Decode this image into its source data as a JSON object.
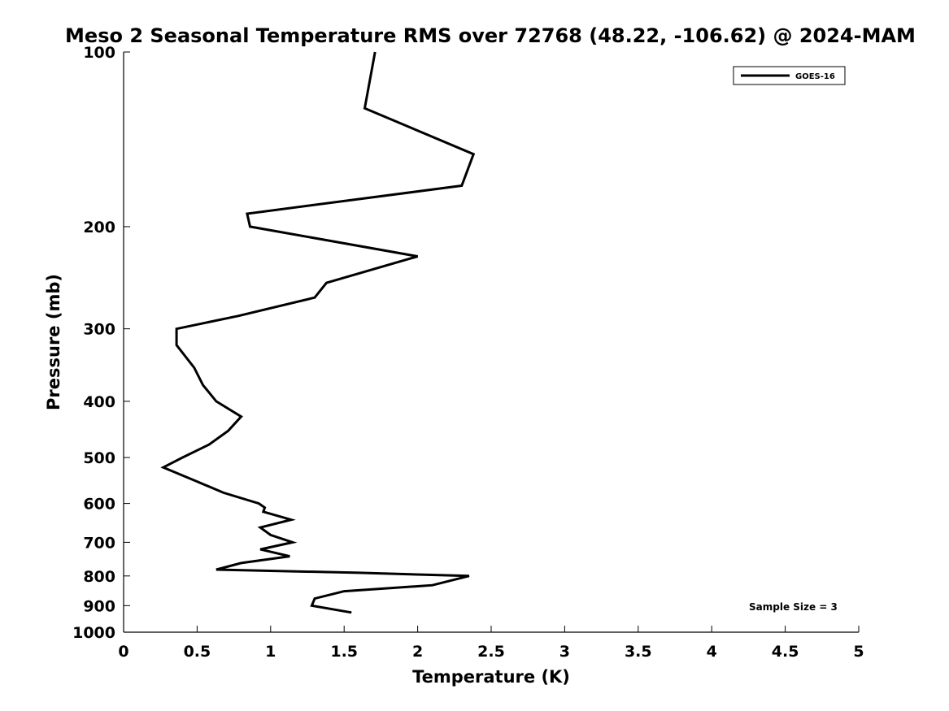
{
  "chart_data": {
    "type": "line",
    "title": "Meso 2 Seasonal Temperature RMS over 72768 (48.22, -106.62) @ 2024-MAM",
    "xlabel": "Temperature (K)",
    "ylabel": "Pressure (mb)",
    "xlim": [
      0,
      5
    ],
    "ylim": [
      100,
      1000
    ],
    "y_scale": "log",
    "y_reversed": true,
    "x_ticks": [
      "0",
      "0.5",
      "1",
      "1.5",
      "2",
      "2.5",
      "3",
      "3.5",
      "4",
      "4.5",
      "5"
    ],
    "y_ticks": [
      "100",
      "200",
      "300",
      "400",
      "500",
      "600",
      "700",
      "800",
      "900",
      "1000"
    ],
    "grid": false,
    "legend": {
      "position": "top-right",
      "entries": [
        "GOES-16"
      ]
    },
    "annotation": "Sample Size = 3",
    "series": [
      {
        "name": "GOES-16",
        "color": "#000000",
        "points": [
          {
            "x": 1.71,
            "y": 100
          },
          {
            "x": 1.64,
            "y": 125
          },
          {
            "x": 2.38,
            "y": 150
          },
          {
            "x": 2.3,
            "y": 170
          },
          {
            "x": 0.84,
            "y": 190
          },
          {
            "x": 0.86,
            "y": 200
          },
          {
            "x": 2.0,
            "y": 225
          },
          {
            "x": 1.38,
            "y": 250
          },
          {
            "x": 1.3,
            "y": 265
          },
          {
            "x": 0.78,
            "y": 285
          },
          {
            "x": 0.36,
            "y": 300
          },
          {
            "x": 0.36,
            "y": 320
          },
          {
            "x": 0.48,
            "y": 350
          },
          {
            "x": 0.54,
            "y": 375
          },
          {
            "x": 0.63,
            "y": 400
          },
          {
            "x": 0.8,
            "y": 425
          },
          {
            "x": 0.71,
            "y": 450
          },
          {
            "x": 0.58,
            "y": 475
          },
          {
            "x": 0.4,
            "y": 500
          },
          {
            "x": 0.27,
            "y": 520
          },
          {
            "x": 0.5,
            "y": 550
          },
          {
            "x": 0.68,
            "y": 575
          },
          {
            "x": 0.92,
            "y": 600
          },
          {
            "x": 0.96,
            "y": 610
          },
          {
            "x": 0.95,
            "y": 620
          },
          {
            "x": 1.14,
            "y": 640
          },
          {
            "x": 0.93,
            "y": 660
          },
          {
            "x": 1.0,
            "y": 680
          },
          {
            "x": 1.15,
            "y": 700
          },
          {
            "x": 0.93,
            "y": 720
          },
          {
            "x": 1.13,
            "y": 740
          },
          {
            "x": 0.8,
            "y": 760
          },
          {
            "x": 0.63,
            "y": 780
          },
          {
            "x": 1.6,
            "y": 790
          },
          {
            "x": 2.35,
            "y": 800
          },
          {
            "x": 2.1,
            "y": 830
          },
          {
            "x": 1.5,
            "y": 850
          },
          {
            "x": 1.3,
            "y": 875
          },
          {
            "x": 1.28,
            "y": 900
          },
          {
            "x": 1.55,
            "y": 925
          }
        ]
      }
    ]
  }
}
